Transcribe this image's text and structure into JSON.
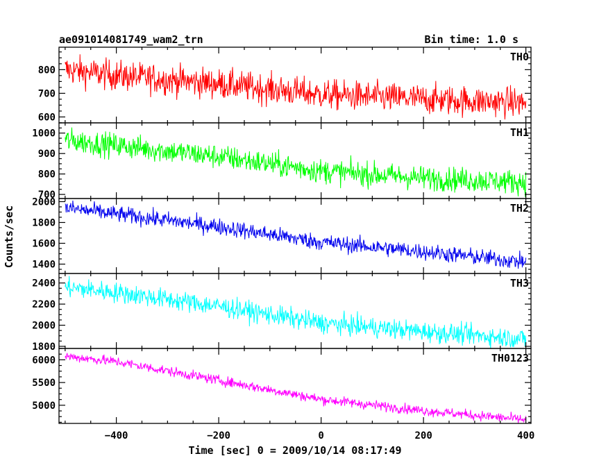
{
  "chart_data": {
    "type": "line",
    "title": "ae091014081749_wam2_trn",
    "subtitle": "Bin time: 1.0 s",
    "xlabel": "Time [sec] 0 = 2009/10/14 08:17:49",
    "ylabel": "Counts/sec",
    "xlim": [
      -512,
      410
    ],
    "x_ticks": [
      -400,
      -200,
      0,
      200,
      400
    ],
    "bin_time_s": 1.0,
    "panels": [
      {
        "name": "TH0",
        "color": "#ff0000",
        "ylim": [
          575,
          895
        ],
        "y_ticks": [
          600,
          700,
          800
        ],
        "trend": [
          {
            "x": -500,
            "y": 800
          },
          {
            "x": -400,
            "y": 775
          },
          {
            "x": -200,
            "y": 740
          },
          {
            "x": 0,
            "y": 695
          },
          {
            "x": 200,
            "y": 675
          },
          {
            "x": 400,
            "y": 660
          }
        ],
        "noise": 32
      },
      {
        "name": "TH1",
        "color": "#00ff00",
        "ylim": [
          680,
          1050
        ],
        "y_ticks": [
          700,
          800,
          900,
          1000
        ],
        "trend": [
          {
            "x": -500,
            "y": 965
          },
          {
            "x": -400,
            "y": 940
          },
          {
            "x": -200,
            "y": 885
          },
          {
            "x": 0,
            "y": 815
          },
          {
            "x": 200,
            "y": 780
          },
          {
            "x": 400,
            "y": 760
          }
        ],
        "noise": 30
      },
      {
        "name": "TH2",
        "color": "#0000ee",
        "ylim": [
          1310,
          2030
        ],
        "y_ticks": [
          1400,
          1600,
          1800,
          2000
        ],
        "trend": [
          {
            "x": -500,
            "y": 1940
          },
          {
            "x": -400,
            "y": 1880
          },
          {
            "x": -200,
            "y": 1760
          },
          {
            "x": 0,
            "y": 1610
          },
          {
            "x": 200,
            "y": 1520
          },
          {
            "x": 400,
            "y": 1420
          }
        ],
        "noise": 40
      },
      {
        "name": "TH3",
        "color": "#00ffff",
        "ylim": [
          1780,
          2490
        ],
        "y_ticks": [
          1800,
          2000,
          2200,
          2400
        ],
        "trend": [
          {
            "x": -500,
            "y": 2360
          },
          {
            "x": -400,
            "y": 2310
          },
          {
            "x": -200,
            "y": 2180
          },
          {
            "x": 0,
            "y": 2020
          },
          {
            "x": 200,
            "y": 1940
          },
          {
            "x": 400,
            "y": 1870
          }
        ],
        "noise": 48
      },
      {
        "name": "TH0123",
        "color": "#ff00ff",
        "ylim": [
          4600,
          6250
        ],
        "y_ticks": [
          5000,
          5500,
          6000
        ],
        "trend": [
          {
            "x": -500,
            "y": 6080
          },
          {
            "x": -400,
            "y": 5960
          },
          {
            "x": -200,
            "y": 5550
          },
          {
            "x": 0,
            "y": 5130
          },
          {
            "x": 200,
            "y": 4880
          },
          {
            "x": 400,
            "y": 4680
          }
        ],
        "noise": 55
      }
    ]
  }
}
